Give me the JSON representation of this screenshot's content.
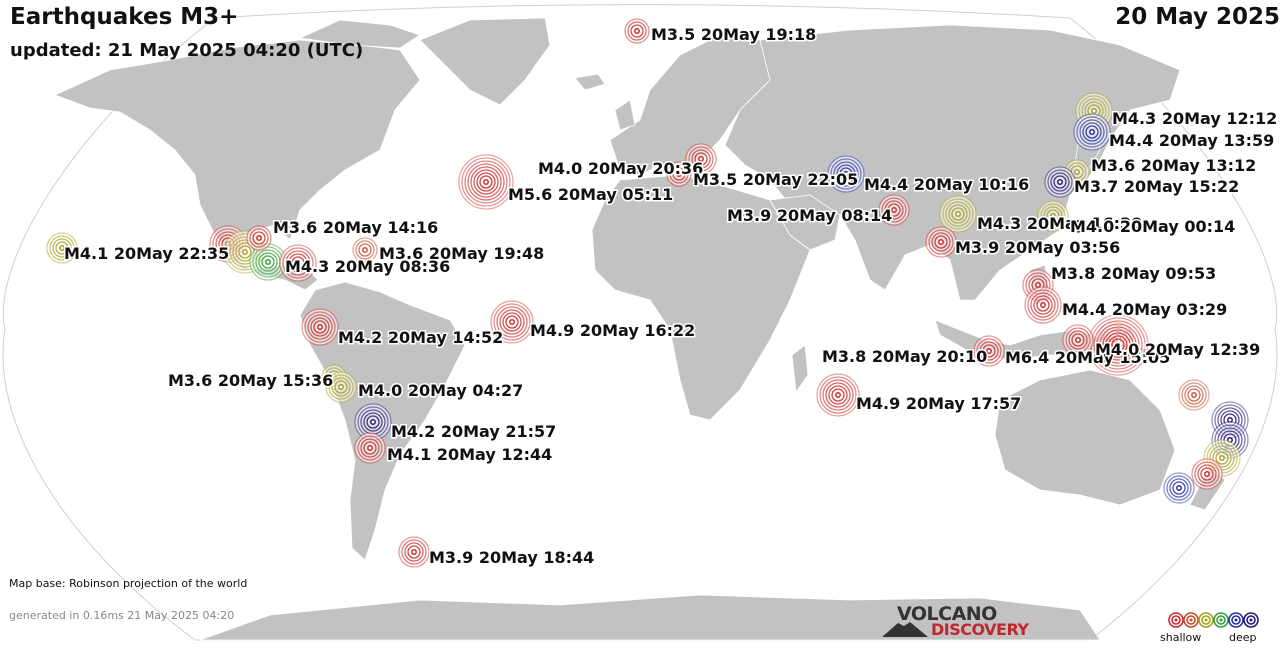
{
  "header": {
    "title": "Earthquakes M3+",
    "updated": "updated: 21 May 2025 04:20 (UTC)",
    "date": "20 May 2025"
  },
  "footer": {
    "map_base": "Map base: Robinson projection of the world",
    "generated": "generated in 0.16ms 21 May 2025 04:20",
    "logo_top": "VOLCANO",
    "logo_bottom": "DISCOVERY"
  },
  "legend": {
    "shallow": "shallow",
    "deep": "deep",
    "colors": [
      "#cc2a2a",
      "#c64a2c",
      "#a6a021",
      "#33a035",
      "#2430a8",
      "#241a7a"
    ]
  },
  "earthquakes": [
    {
      "label": "M3.5 20May 19:18",
      "mag": 3.5,
      "depth": "shallow"
    },
    {
      "label": "M4.3 20May 12:12",
      "mag": 4.3,
      "depth": "intermediate"
    },
    {
      "label": "M4.4 20May 13:59",
      "mag": 4.4,
      "depth": "deep"
    },
    {
      "label": "M3.6 20May 13:12",
      "mag": 3.6,
      "depth": "intermediate"
    },
    {
      "label": "M3.7 20May 15:22",
      "mag": 3.7,
      "depth": "very-deep"
    },
    {
      "label": "M4.0 20May 20:36",
      "mag": 4.0,
      "depth": "shallow"
    },
    {
      "label": "M3.5 20May 22:05",
      "mag": 3.5,
      "depth": "shallow"
    },
    {
      "label": "M4.4 20May 10:16",
      "mag": 4.4,
      "depth": "deep"
    },
    {
      "label": "M5.6 20May 05:11",
      "mag": 5.6,
      "depth": "shallow"
    },
    {
      "label": "M3.9 20May 08:14",
      "mag": 3.9,
      "depth": "shallow"
    },
    {
      "label": "M4.3 20May 16:30",
      "mag": 4.3,
      "depth": "intermediate"
    },
    {
      "label": "M4.0 20May 00:14",
      "mag": 4.0,
      "depth": "intermediate"
    },
    {
      "label": "M3.9 20May 03:56",
      "mag": 3.9,
      "depth": "shallow"
    },
    {
      "label": "M3.6 20May 14:16",
      "mag": 3.6,
      "depth": "shallow"
    },
    {
      "label": "M4.1 20May 22:35",
      "mag": 4.1,
      "depth": "intermediate"
    },
    {
      "label": "M3.6 20May 19:48",
      "mag": 3.6,
      "depth": "shallow-light"
    },
    {
      "label": "M4.3 20May 08:36",
      "mag": 4.3,
      "depth": "shallow"
    },
    {
      "label": "M3.8 20May 09:53",
      "mag": 3.8,
      "depth": "shallow"
    },
    {
      "label": "M4.4 20May 03:29",
      "mag": 4.4,
      "depth": "shallow"
    },
    {
      "label": "M4.2 20May 14:52",
      "mag": 4.2,
      "depth": "shallow"
    },
    {
      "label": "M4.9 20May 16:22",
      "mag": 4.9,
      "depth": "shallow"
    },
    {
      "label": "M3.8 20May 20:10",
      "mag": 3.8,
      "depth": "shallow"
    },
    {
      "label": "M6.4 20May 15:05",
      "mag": 6.4,
      "depth": "shallow"
    },
    {
      "label": "M4.0 20May 12:39",
      "mag": 4.0,
      "depth": "shallow"
    },
    {
      "label": "M3.6 20May 15:36",
      "mag": 3.6,
      "depth": "intermediate"
    },
    {
      "label": "M4.0 20May 04:27",
      "mag": 4.0,
      "depth": "intermediate"
    },
    {
      "label": "M4.9 20May 17:57",
      "mag": 4.9,
      "depth": "shallow"
    },
    {
      "label": "M4.2 20May 21:57",
      "mag": 4.2,
      "depth": "very-deep"
    },
    {
      "label": "M4.1 20May 12:44",
      "mag": 4.1,
      "depth": "shallow"
    },
    {
      "label": "M3.9 20May 18:44",
      "mag": 3.9,
      "depth": "shallow"
    }
  ],
  "unlabeled_markers": [
    {
      "mag": 4.4,
      "depth": "shallow"
    },
    {
      "mag": 4.6,
      "depth": "intermediate"
    },
    {
      "mag": 4.3,
      "depth": "intermediate-green"
    },
    {
      "mag": 3.8,
      "depth": "shallow-light"
    },
    {
      "mag": 4.4,
      "depth": "very-deep"
    },
    {
      "mag": 4.4,
      "depth": "very-deep"
    },
    {
      "mag": 4.2,
      "depth": "intermediate"
    },
    {
      "mag": 3.9,
      "depth": "shallow"
    },
    {
      "mag": 3.7,
      "depth": "deep"
    },
    {
      "mag": 4.4,
      "depth": "shallow"
    }
  ]
}
